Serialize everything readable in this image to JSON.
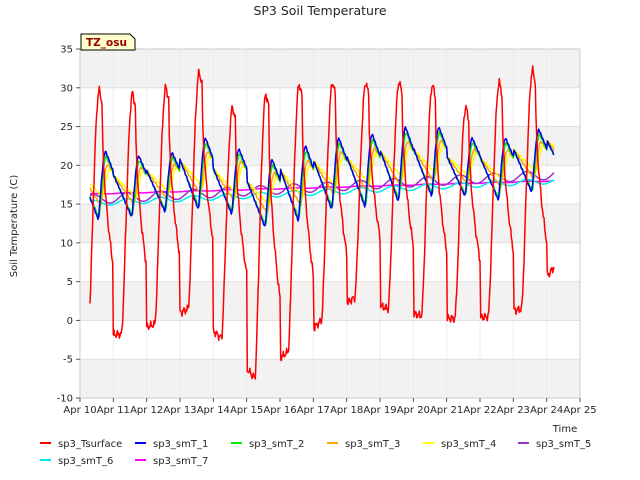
{
  "chart_data": {
    "type": "line",
    "title": "SP3 Soil Temperature",
    "xlabel": "Time",
    "ylabel": "Soil Temperature (C)",
    "badge": "TZ_osu",
    "xlim": [
      0,
      15
    ],
    "ylim": [
      -10,
      35
    ],
    "x_ticks": [
      {
        "value": 0,
        "label": "Apr 10"
      },
      {
        "value": 1,
        "label": "Apr 11"
      },
      {
        "value": 2,
        "label": "Apr 12"
      },
      {
        "value": 3,
        "label": "Apr 13"
      },
      {
        "value": 4,
        "label": "Apr 14"
      },
      {
        "value": 5,
        "label": "Apr 15"
      },
      {
        "value": 6,
        "label": "Apr 16"
      },
      {
        "value": 7,
        "label": "Apr 17"
      },
      {
        "value": 8,
        "label": "Apr 18"
      },
      {
        "value": 9,
        "label": "Apr 19"
      },
      {
        "value": 10,
        "label": "Apr 20"
      },
      {
        "value": 11,
        "label": "Apr 21"
      },
      {
        "value": 12,
        "label": "Apr 22"
      },
      {
        "value": 13,
        "label": "Apr 23"
      },
      {
        "value": 14,
        "label": "Apr 24"
      },
      {
        "value": 15,
        "label": "Apr 25"
      }
    ],
    "y_ticks": [
      {
        "value": -10,
        "label": "-10"
      },
      {
        "value": -5,
        "label": "-5"
      },
      {
        "value": 0,
        "label": "0"
      },
      {
        "value": 5,
        "label": "5"
      },
      {
        "value": 10,
        "label": "10"
      },
      {
        "value": 15,
        "label": "15"
      },
      {
        "value": 20,
        "label": "20"
      },
      {
        "value": 25,
        "label": "25"
      },
      {
        "value": 30,
        "label": "30"
      },
      {
        "value": 35,
        "label": "35"
      }
    ],
    "grid": true,
    "daily_extremes": {
      "sp3_Tsurface": {
        "day": [
          0,
          1,
          2,
          3,
          4,
          5,
          6,
          7,
          8,
          9,
          10,
          11,
          12,
          13,
          14
        ],
        "max": [
          29.7,
          29.3,
          30.1,
          32.0,
          27.5,
          29.2,
          30.5,
          30.7,
          30.7,
          30.8,
          30.4,
          27.5,
          30.7,
          32.3,
          32.3
        ],
        "min": [
          -1.9,
          -1.8,
          -0.5,
          1.5,
          -2.3,
          -7.5,
          -4.0,
          0.0,
          3.0,
          1.5,
          0.6,
          0.2,
          0.5,
          1.5,
          7.0
        ]
      },
      "sp3_smT_1": {
        "max": [
          21.8,
          21.2,
          21.6,
          23.5,
          22.1,
          20.7,
          22.5,
          23.5,
          24.0,
          24.9,
          24.9,
          23.5,
          23.5,
          24.6,
          25.3
        ],
        "min": [
          13.0,
          13.3,
          14.0,
          14.3,
          13.7,
          12.0,
          12.8,
          14.3,
          14.6,
          15.3,
          16.0,
          16.0,
          15.5,
          16.5,
          18.5
        ]
      },
      "sp3_smT_7": {
        "start": 16.3,
        "end": 18.0
      }
    },
    "series": [
      {
        "name": "sp3_Tsurface",
        "color": "#ff0000"
      },
      {
        "name": "sp3_smT_1",
        "color": "#0000ee"
      },
      {
        "name": "sp3_smT_2",
        "color": "#00ee00"
      },
      {
        "name": "sp3_smT_3",
        "color": "#ffa500"
      },
      {
        "name": "sp3_smT_4",
        "color": "#ffff00"
      },
      {
        "name": "sp3_smT_5",
        "color": "#9932cc"
      },
      {
        "name": "sp3_smT_6",
        "color": "#00eeee"
      },
      {
        "name": "sp3_smT_7",
        "color": "#ff00ff"
      }
    ]
  }
}
